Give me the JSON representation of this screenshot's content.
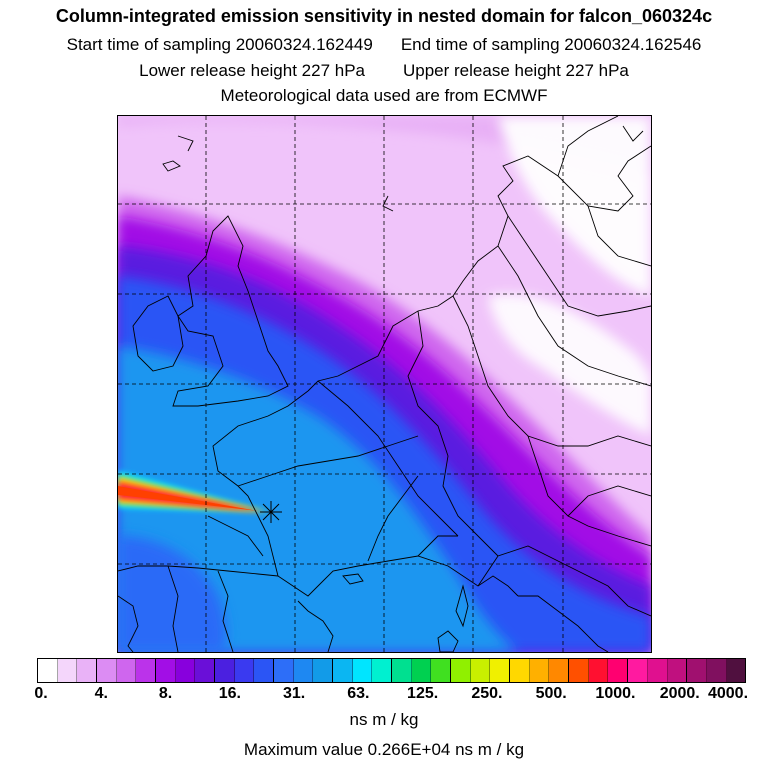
{
  "title": {
    "line1": "Column-integrated emission sensitivity in nested domain for falcon_060324c",
    "start_label": "Start time of sampling 20060324.162449",
    "end_label": "End time of sampling 20060324.162546",
    "lower_label": "Lower release height  227 hPa",
    "upper_label": "Upper release height  227 hPa",
    "line4": "Meteorological data used are from ECMWF"
  },
  "legend": {
    "labels": [
      "0.",
      "4.",
      "8.",
      "16.",
      "31.",
      "63.",
      "125.",
      "250.",
      "500.",
      "1000.",
      "2000.",
      "4000."
    ],
    "colors": [
      "#ffffff",
      "#f4d6fb",
      "#e9b2f7",
      "#dc8cf3",
      "#cf66ee",
      "#bb33ea",
      "#a20ee6",
      "#8800dd",
      "#6a0fd8",
      "#4b20e0",
      "#3a3af0",
      "#2b55f5",
      "#2d6ef8",
      "#1e88f2",
      "#129be8",
      "#0bb6f2",
      "#00e5ff",
      "#00f0d0",
      "#00e090",
      "#00d050",
      "#40e020",
      "#90f000",
      "#c8f000",
      "#f0f000",
      "#ffd800",
      "#ffb000",
      "#ff8800",
      "#ff5000",
      "#ff1030",
      "#ff0070",
      "#ff1aa0",
      "#e0108f",
      "#c0107f",
      "#a0106f",
      "#80105f",
      "#50103f"
    ],
    "unit": "ns m / kg",
    "max_value": "Maximum value  0.266E+04 ns m / kg"
  },
  "map": {
    "grid_lines": "dashed",
    "release_marker": "star-marker-icon",
    "plume_colors": {
      "background_light": "#f3c8fb",
      "purple": "#a61be8",
      "deep_purple": "#7a14e0",
      "blue": "#2b55f5",
      "light_blue": "#1e96f0",
      "streak_hot": "#ff2040",
      "streak_warm": "#ffb000",
      "streak_cyan": "#00e8ff"
    }
  }
}
